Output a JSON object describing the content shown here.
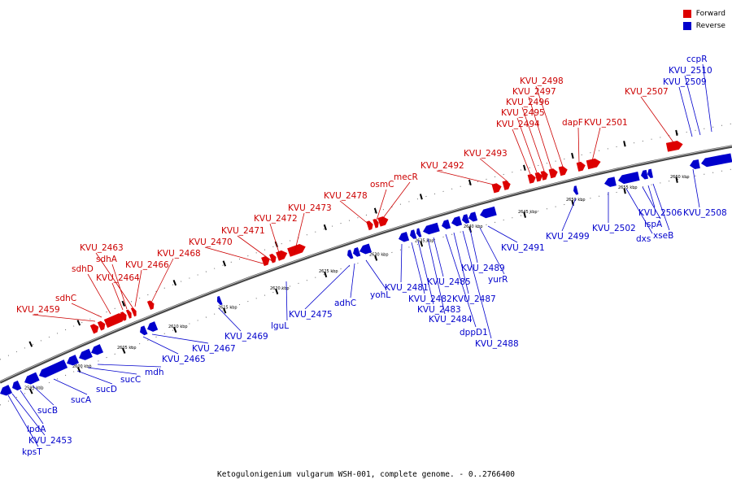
{
  "caption": "Ketogulonigenium vulgarum WSH-001, complete genome. - 0..2766400",
  "legend": {
    "forward_label": "Forward",
    "reverse_label": "Reverse",
    "forward_color": "#dd0000",
    "reverse_color": "#0000cc"
  },
  "ticks": [
    "2595 kbp",
    "2600 kbp",
    "2605 kbp",
    "2610 kbp",
    "2615 kbp",
    "2620 kbp",
    "2625 kbp",
    "2630 kbp",
    "2635 kbp",
    "2640 kbp",
    "2645 kbp",
    "2650 kbp",
    "2655 kbp",
    "2660 kbp"
  ],
  "forward_genes": [
    "KVU_2459",
    "sdhC",
    "sdhD",
    "KVU_2464",
    "sdhA",
    "KVU_2463",
    "KVU_2466",
    "KVU_2468",
    "KVU_2470",
    "KVU_2471",
    "KVU_2472",
    "KVU_2473",
    "KVU_2478",
    "osmC",
    "mecR",
    "KVU_2492",
    "KVU_2493",
    "KVU_2494",
    "KVU_2495",
    "KVU_2496",
    "KVU_2497",
    "KVU_2498",
    "dapF",
    "KVU_2501",
    "KVU_2507"
  ],
  "reverse_genes": [
    "kpsT",
    "KVU_2453",
    "lpdA",
    "sucB",
    "sucA",
    "sucD",
    "sucC",
    "mdh",
    "KVU_2465",
    "KVU_2467",
    "KVU_2469",
    "lguL",
    "KVU_2475",
    "adhC",
    "yohL",
    "KVU_2481",
    "KVU_2482",
    "KVU_2483",
    "KVU_2484",
    "KVU_2485",
    "dppD1",
    "KVU_2487",
    "KVU_2488",
    "KVU_2489",
    "yurR",
    "KVU_2491",
    "KVU_2499",
    "KVU_2502",
    "dxs",
    "ispA",
    "KVU_2506",
    "xseB",
    "KVU_2508",
    "KVU_2509",
    "KVU_2510",
    "ccpR"
  ]
}
